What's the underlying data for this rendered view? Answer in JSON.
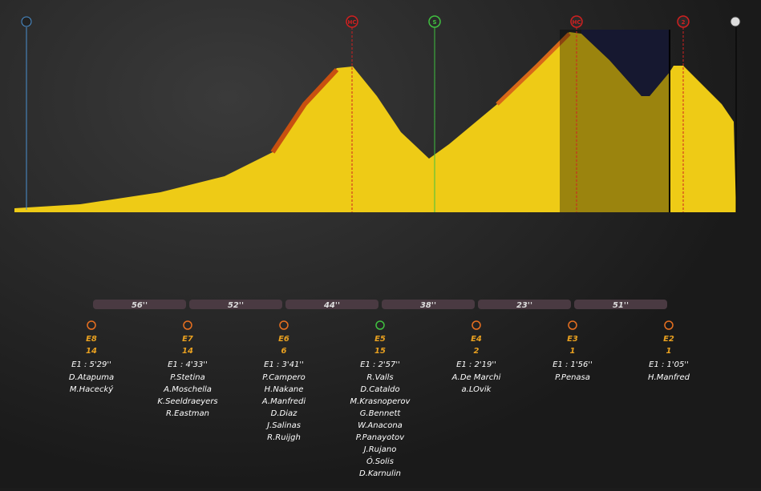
{
  "profile": {
    "markers": [
      "HC",
      "S",
      "HC",
      "2"
    ]
  },
  "gaps": [
    "56''",
    "52''",
    "44''",
    "38''",
    "23''",
    "51''"
  ],
  "groups": [
    {
      "name": "E8",
      "count": 14,
      "time": "E1 : 5'29''",
      "riders": [
        "D.Atapuma",
        "M.Hacecký"
      ]
    },
    {
      "name": "E7",
      "count": 14,
      "time": "E1 : 4'33''",
      "riders": [
        "P.Stetina",
        "A.Moschella",
        "K.Seeldraeyers",
        "R.Eastman"
      ]
    },
    {
      "name": "E6",
      "count": 6,
      "time": "E1 : 3'41''",
      "riders": [
        "P.Campero",
        "H.Nakane",
        "A.Manfredi",
        "D.Diaz",
        "J.Salinas",
        "R.Ruijgh"
      ]
    },
    {
      "name": "E5",
      "count": 15,
      "time": "E1 : 2'57''",
      "riders": [
        "R.Valls",
        "D.Cataldo",
        "M.Krasnoperov",
        "G.Bennett",
        {
          "name": "W.Anacona",
          "color": "#e8c020"
        },
        "P.Panayotov",
        "J.Rujano",
        "Ó.Solis",
        "D.Karnulin"
      ]
    },
    {
      "name": "E4",
      "count": 2,
      "time": "E1 : 2'19''",
      "riders": [
        "A.De Marchi",
        "a.LOvik"
      ]
    },
    {
      "name": "E3",
      "count": 1,
      "time": "E1 : 1'56''",
      "riders": [
        "P.Penasa"
      ]
    },
    {
      "name": "E2",
      "count": 1,
      "time": "E1 : 1'05''",
      "riders": [
        "H.Manfred"
      ]
    }
  ]
}
